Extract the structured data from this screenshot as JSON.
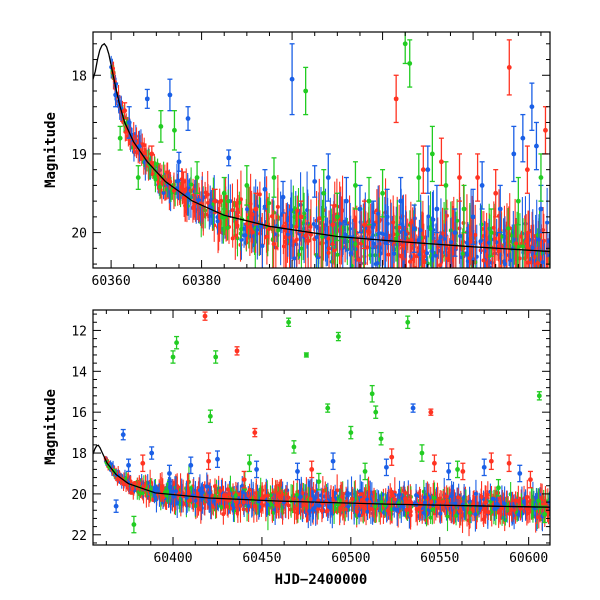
{
  "chart_data": [
    {
      "type": "scatter",
      "title": "",
      "xlabel": "",
      "ylabel": "Magnitude",
      "xlim": [
        60356,
        60457
      ],
      "ylim": [
        20.45,
        17.45
      ],
      "y_inverted": true,
      "x_ticks": [
        60360,
        60380,
        60400,
        60420,
        60440
      ],
      "y_ticks": [
        18,
        19,
        20
      ],
      "grid": false,
      "legend": "none",
      "model_curve": {
        "color": "#000000",
        "x": [
          60356,
          60356.5,
          60357,
          60357.5,
          60358,
          60358.5,
          60359,
          60359.5,
          60360,
          60361,
          60362,
          60363,
          60365,
          60368,
          60372,
          60378,
          60385,
          60395,
          60410,
          60425,
          60440,
          60457
        ],
        "y": [
          18.05,
          17.95,
          17.8,
          17.68,
          17.62,
          17.6,
          17.64,
          17.73,
          17.87,
          18.15,
          18.4,
          18.6,
          18.85,
          19.1,
          19.35,
          19.6,
          19.78,
          19.92,
          20.05,
          20.12,
          20.18,
          20.24
        ]
      },
      "series": [
        {
          "color": "#1a5fe6",
          "points": [
            {
              "x": 60361,
              "y": 18.25,
              "err": 0.15
            },
            {
              "x": 60364,
              "y": 18.6,
              "err": 0.2
            },
            {
              "x": 60368,
              "y": 18.3,
              "err": 0.12
            },
            {
              "x": 60373,
              "y": 18.25,
              "err": 0.2
            },
            {
              "x": 60375,
              "y": 19.1,
              "err": 0.12
            },
            {
              "x": 60377,
              "y": 18.55,
              "err": 0.15
            },
            {
              "x": 60386,
              "y": 19.05,
              "err": 0.1
            },
            {
              "x": 60394,
              "y": 19.45,
              "err": 0.25
            },
            {
              "x": 60398,
              "y": 19.55,
              "err": 0.2
            },
            {
              "x": 60400,
              "y": 18.05,
              "err": 0.45
            },
            {
              "x": 60405,
              "y": 19.35,
              "err": 0.2
            },
            {
              "x": 60408,
              "y": 19.3,
              "err": 0.3
            },
            {
              "x": 60412,
              "y": 19.6,
              "err": 0.3
            },
            {
              "x": 60415,
              "y": 19.7,
              "err": 0.3
            },
            {
              "x": 60418,
              "y": 19.9,
              "err": 0.3
            },
            {
              "x": 60421,
              "y": 19.8,
              "err": 0.35
            },
            {
              "x": 60424,
              "y": 19.6,
              "err": 0.3
            },
            {
              "x": 60427,
              "y": 19.95,
              "err": 0.3
            },
            {
              "x": 60430,
              "y": 19.2,
              "err": 0.3
            },
            {
              "x": 60432,
              "y": 19.7,
              "err": 0.3
            },
            {
              "x": 60436,
              "y": 20.0,
              "err": 0.3
            },
            {
              "x": 60440,
              "y": 19.8,
              "err": 0.35
            },
            {
              "x": 60442,
              "y": 19.4,
              "err": 0.3
            },
            {
              "x": 60446,
              "y": 19.7,
              "err": 0.3
            },
            {
              "x": 60449,
              "y": 19.0,
              "err": 0.35
            },
            {
              "x": 60451,
              "y": 18.8,
              "err": 0.3
            },
            {
              "x": 60453,
              "y": 18.4,
              "err": 0.3
            },
            {
              "x": 60454,
              "y": 18.9,
              "err": 0.3
            },
            {
              "x": 60455,
              "y": 19.7,
              "err": 0.3
            }
          ]
        },
        {
          "color": "#22cc22",
          "points": [
            {
              "x": 60362,
              "y": 18.8,
              "err": 0.15
            },
            {
              "x": 60366,
              "y": 19.3,
              "err": 0.15
            },
            {
              "x": 60371,
              "y": 18.65,
              "err": 0.2
            },
            {
              "x": 60374,
              "y": 18.7,
              "err": 0.25
            },
            {
              "x": 60379,
              "y": 19.3,
              "err": 0.2
            },
            {
              "x": 60385,
              "y": 19.5,
              "err": 0.2
            },
            {
              "x": 60390,
              "y": 19.4,
              "err": 0.25
            },
            {
              "x": 60396,
              "y": 19.3,
              "err": 0.25
            },
            {
              "x": 60403,
              "y": 18.2,
              "err": 0.3
            },
            {
              "x": 60407,
              "y": 19.5,
              "err": 0.3
            },
            {
              "x": 60410,
              "y": 19.8,
              "err": 0.3
            },
            {
              "x": 60414,
              "y": 19.4,
              "err": 0.3
            },
            {
              "x": 60417,
              "y": 19.6,
              "err": 0.3
            },
            {
              "x": 60420,
              "y": 19.5,
              "err": 0.3
            },
            {
              "x": 60425,
              "y": 17.6,
              "err": 0.25
            },
            {
              "x": 60426,
              "y": 17.85,
              "err": 0.3
            },
            {
              "x": 60428,
              "y": 19.3,
              "err": 0.3
            },
            {
              "x": 60431,
              "y": 19.0,
              "err": 0.35
            },
            {
              "x": 60434,
              "y": 19.4,
              "err": 0.3
            },
            {
              "x": 60438,
              "y": 19.7,
              "err": 0.3
            },
            {
              "x": 60444,
              "y": 20.0,
              "err": 0.3
            },
            {
              "x": 60450,
              "y": 19.6,
              "err": 0.3
            },
            {
              "x": 60455,
              "y": 19.3,
              "err": 0.3
            }
          ]
        },
        {
          "color": "#ff3322",
          "points": [
            {
              "x": 60363,
              "y": 18.45,
              "err": 0.1
            },
            {
              "x": 60369,
              "y": 19.0,
              "err": 0.1
            },
            {
              "x": 60376,
              "y": 19.35,
              "err": 0.12
            },
            {
              "x": 60383,
              "y": 19.6,
              "err": 0.15
            },
            {
              "x": 60392,
              "y": 19.7,
              "err": 0.2
            },
            {
              "x": 60402,
              "y": 19.8,
              "err": 0.2
            },
            {
              "x": 60409,
              "y": 19.9,
              "err": 0.25
            },
            {
              "x": 60416,
              "y": 19.9,
              "err": 0.3
            },
            {
              "x": 60423,
              "y": 18.3,
              "err": 0.3
            },
            {
              "x": 60429,
              "y": 19.2,
              "err": 0.3
            },
            {
              "x": 60433,
              "y": 19.1,
              "err": 0.3
            },
            {
              "x": 60437,
              "y": 19.3,
              "err": 0.3
            },
            {
              "x": 60441,
              "y": 19.3,
              "err": 0.3
            },
            {
              "x": 60445,
              "y": 19.5,
              "err": 0.3
            },
            {
              "x": 60448,
              "y": 17.9,
              "err": 0.35
            },
            {
              "x": 60452,
              "y": 19.2,
              "err": 0.3
            },
            {
              "x": 60456,
              "y": 18.7,
              "err": 0.3
            }
          ]
        }
      ]
    },
    {
      "type": "scatter",
      "title": "",
      "xlabel": "HJD−2400000",
      "ylabel": "Magnitude",
      "xlim": [
        60355,
        60612
      ],
      "ylim": [
        22.5,
        11.0
      ],
      "y_inverted": true,
      "x_ticks": [
        60400,
        60450,
        60500,
        60550,
        60600
      ],
      "y_ticks": [
        12,
        14,
        16,
        18,
        20,
        22
      ],
      "grid": false,
      "legend": "none",
      "model_curve": {
        "color": "#000000",
        "x": [
          60355,
          60356,
          60357,
          60358,
          60359,
          60360,
          60363,
          60368,
          60375,
          60390,
          60420,
          60460,
          60520,
          60580,
          60612
        ],
        "y": [
          18.05,
          17.8,
          17.65,
          17.62,
          17.75,
          17.95,
          18.5,
          19.05,
          19.5,
          19.95,
          20.2,
          20.35,
          20.5,
          20.6,
          20.65
        ]
      },
      "series": [
        {
          "color": "#1a5fe6",
          "points": [
            {
              "x": 60368,
              "y": 20.6,
              "err": 0.3
            },
            {
              "x": 60372,
              "y": 17.1,
              "err": 0.25
            },
            {
              "x": 60375,
              "y": 18.6,
              "err": 0.3
            },
            {
              "x": 60388,
              "y": 18.0,
              "err": 0.3
            },
            {
              "x": 60398,
              "y": 19.0,
              "err": 0.4
            },
            {
              "x": 60410,
              "y": 18.6,
              "err": 0.4
            },
            {
              "x": 60425,
              "y": 18.3,
              "err": 0.4
            },
            {
              "x": 60447,
              "y": 18.8,
              "err": 0.4
            },
            {
              "x": 60470,
              "y": 18.9,
              "err": 0.4
            },
            {
              "x": 60490,
              "y": 18.4,
              "err": 0.4
            },
            {
              "x": 60520,
              "y": 18.7,
              "err": 0.4
            },
            {
              "x": 60535,
              "y": 15.8,
              "err": 0.2
            },
            {
              "x": 60555,
              "y": 18.9,
              "err": 0.4
            },
            {
              "x": 60575,
              "y": 18.7,
              "err": 0.4
            },
            {
              "x": 60595,
              "y": 19.0,
              "err": 0.4
            }
          ]
        },
        {
          "color": "#22cc22",
          "points": [
            {
              "x": 60378,
              "y": 21.5,
              "err": 0.4
            },
            {
              "x": 60400,
              "y": 13.3,
              "err": 0.3
            },
            {
              "x": 60402,
              "y": 12.6,
              "err": 0.3
            },
            {
              "x": 60421,
              "y": 16.2,
              "err": 0.3
            },
            {
              "x": 60424,
              "y": 13.3,
              "err": 0.3
            },
            {
              "x": 60443,
              "y": 18.5,
              "err": 0.4
            },
            {
              "x": 60465,
              "y": 11.6,
              "err": 0.2
            },
            {
              "x": 60468,
              "y": 17.7,
              "err": 0.3
            },
            {
              "x": 60475,
              "y": 13.2,
              "err": 0.1
            },
            {
              "x": 60482,
              "y": 19.4,
              "err": 0.4
            },
            {
              "x": 60487,
              "y": 15.8,
              "err": 0.2
            },
            {
              "x": 60493,
              "y": 12.3,
              "err": 0.2
            },
            {
              "x": 60500,
              "y": 17.0,
              "err": 0.3
            },
            {
              "x": 60508,
              "y": 18.9,
              "err": 0.4
            },
            {
              "x": 60512,
              "y": 15.1,
              "err": 0.4
            },
            {
              "x": 60514,
              "y": 16.0,
              "err": 0.3
            },
            {
              "x": 60517,
              "y": 17.3,
              "err": 0.3
            },
            {
              "x": 60532,
              "y": 11.6,
              "err": 0.3
            },
            {
              "x": 60540,
              "y": 18.0,
              "err": 0.4
            },
            {
              "x": 60560,
              "y": 18.8,
              "err": 0.4
            },
            {
              "x": 60583,
              "y": 19.7,
              "err": 0.4
            },
            {
              "x": 60606,
              "y": 15.2,
              "err": 0.2
            },
            {
              "x": 60609,
              "y": 21.0,
              "err": 0.4
            }
          ]
        },
        {
          "color": "#ff3322",
          "points": [
            {
              "x": 60383,
              "y": 18.5,
              "err": 0.4
            },
            {
              "x": 60418,
              "y": 11.3,
              "err": 0.2
            },
            {
              "x": 60420,
              "y": 18.4,
              "err": 0.4
            },
            {
              "x": 60436,
              "y": 13.0,
              "err": 0.2
            },
            {
              "x": 60440,
              "y": 19.3,
              "err": 0.4
            },
            {
              "x": 60446,
              "y": 17.0,
              "err": 0.2
            },
            {
              "x": 60478,
              "y": 18.8,
              "err": 0.4
            },
            {
              "x": 60523,
              "y": 18.2,
              "err": 0.4
            },
            {
              "x": 60545,
              "y": 16.0,
              "err": 0.15
            },
            {
              "x": 60547,
              "y": 18.5,
              "err": 0.4
            },
            {
              "x": 60563,
              "y": 18.9,
              "err": 0.4
            },
            {
              "x": 60579,
              "y": 18.4,
              "err": 0.4
            },
            {
              "x": 60589,
              "y": 18.5,
              "err": 0.4
            },
            {
              "x": 60601,
              "y": 19.3,
              "err": 0.4
            }
          ]
        }
      ]
    }
  ]
}
